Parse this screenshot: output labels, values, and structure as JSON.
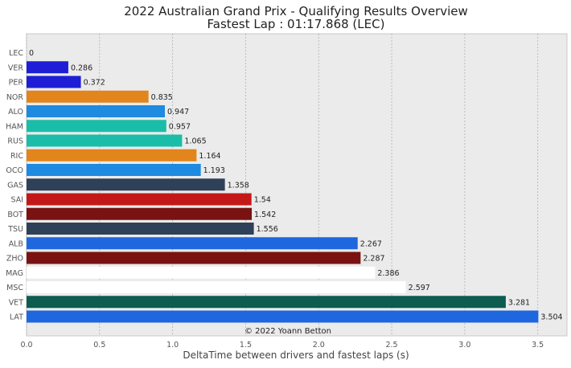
{
  "chart_data": {
    "type": "bar",
    "orientation": "horizontal",
    "title": "2022 Australian Grand Prix - Qualifying Results Overview",
    "subtitle": "Fastest Lap : 01:17.868 (LEC)",
    "xlabel": "DeltaTime between drivers and fastest laps (s)",
    "ylabel": "",
    "xlim": [
      0,
      3.7
    ],
    "xticks": [
      0.0,
      0.5,
      1.0,
      1.5,
      2.0,
      2.5,
      3.0,
      3.5
    ],
    "xtick_labels": [
      "0.0",
      "0.5",
      "1.0",
      "1.5",
      "2.0",
      "2.5",
      "3.0",
      "3.5"
    ],
    "grid": true,
    "categories": [
      "LEC",
      "VER",
      "PER",
      "NOR",
      "ALO",
      "HAM",
      "RUS",
      "RIC",
      "OCO",
      "GAS",
      "SAI",
      "BOT",
      "TSU",
      "ALB",
      "ZHO",
      "MAG",
      "MSC",
      "VET",
      "LAT"
    ],
    "values": [
      0,
      0.286,
      0.372,
      0.835,
      0.947,
      0.957,
      1.065,
      1.164,
      1.193,
      1.358,
      1.54,
      1.542,
      1.556,
      2.267,
      2.287,
      2.386,
      2.597,
      3.281,
      3.504
    ],
    "value_labels": [
      "0",
      "0.286",
      "0.372",
      "0.835",
      "0.947",
      "0.957",
      "1.065",
      "1.164",
      "1.193",
      "1.358",
      "1.54",
      "1.542",
      "1.556",
      "2.267",
      "2.287",
      "2.386",
      "2.597",
      "3.281",
      "3.504"
    ],
    "colors": [
      "#dc0000",
      "#1e1ed6",
      "#1e1ed6",
      "#e1851c",
      "#1e8ae0",
      "#1abda8",
      "#1abda8",
      "#e1851c",
      "#1e8ae0",
      "#2e4158",
      "#c41818",
      "#7a1212",
      "#2e4158",
      "#1f67de",
      "#7a1212",
      "#ffffff",
      "#ffffff",
      "#0c5c50",
      "#1f67de"
    ],
    "annotation": "© 2022 Yoann Betton"
  },
  "theme": {
    "plot_background": "#ebebeb",
    "grid_color": "#b0b0b0",
    "text_color": "#222222",
    "tick_color": "#555555"
  }
}
